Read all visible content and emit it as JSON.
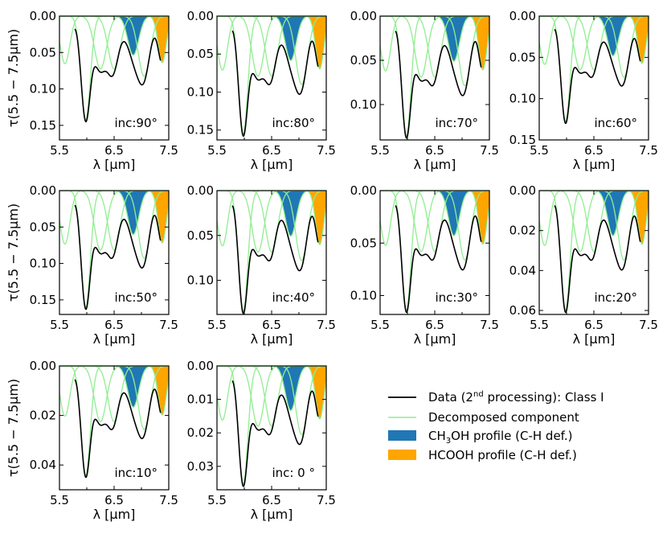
{
  "chart_data": {
    "type": "line",
    "x_unit": "λ [μm]",
    "xlim": [
      5.5,
      7.5
    ],
    "xticks": [
      "5.5",
      "6.5",
      "7.5"
    ],
    "ylabel": "τ(5.5 − 7.5μm)",
    "xlabel": "λ [μm]",
    "colors": {
      "data": "#000000",
      "component": "#90ee90",
      "ch3oh": "#1f77b4",
      "hcooh": "#ffa500"
    },
    "legend": {
      "data_label": "Data (2nd processing): Class I",
      "data_label_pre": "Data (2",
      "data_label_sup": "nd",
      "data_label_post": " processing): Class I",
      "component_label": "Decomposed component",
      "ch3oh_label": "CH3OH profile (C-H def.)",
      "ch3oh_pre": "CH",
      "ch3oh_sub": "3",
      "ch3oh_post": "OH profile (C-H def.)",
      "hcooh_label": "HCOOH profile (C-H def.)"
    },
    "panels": [
      {
        "label": "inc:90°",
        "scale": 0.145,
        "ymax": 0.17,
        "yticks": [
          "0.00",
          "0.05",
          "0.10",
          "0.15"
        ],
        "ytick_values": [
          0,
          0.05,
          0.1,
          0.15
        ],
        "show_ylabel": true
      },
      {
        "label": "inc:80°",
        "scale": 0.158,
        "ymax": 0.163,
        "yticks": [
          "0.00",
          "0.05",
          "0.10",
          "0.15"
        ],
        "ytick_values": [
          0,
          0.05,
          0.1,
          0.15
        ],
        "show_ylabel": false
      },
      {
        "label": "inc:70°",
        "scale": 0.138,
        "ymax": 0.14,
        "yticks": [
          "0.00",
          "0.05",
          "0.10"
        ],
        "ytick_values": [
          0,
          0.05,
          0.1
        ],
        "show_ylabel": false
      },
      {
        "label": "inc:60°",
        "scale": 0.13,
        "ymax": 0.15,
        "yticks": [
          "0.00",
          "0.05",
          "0.10",
          "0.15"
        ],
        "ytick_values": [
          0,
          0.05,
          0.1,
          0.15
        ],
        "show_ylabel": false
      },
      {
        "label": "inc:50°",
        "scale": 0.163,
        "ymax": 0.17,
        "yticks": [
          "0.00",
          "0.05",
          "0.10",
          "0.15"
        ],
        "ytick_values": [
          0,
          0.05,
          0.1,
          0.15
        ],
        "show_ylabel": true
      },
      {
        "label": "inc:40°",
        "scale": 0.137,
        "ymax": 0.138,
        "yticks": [
          "0.00",
          "0.05",
          "0.10"
        ],
        "ytick_values": [
          0,
          0.05,
          0.1
        ],
        "show_ylabel": false
      },
      {
        "label": "inc:30°",
        "scale": 0.116,
        "ymax": 0.118,
        "yticks": [
          "0.00",
          "0.05",
          "0.10"
        ],
        "ytick_values": [
          0,
          0.05,
          0.1
        ],
        "show_ylabel": false
      },
      {
        "label": "inc:20°",
        "scale": 0.061,
        "ymax": 0.062,
        "yticks": [
          "0.00",
          "0.02",
          "0.04",
          "0.06"
        ],
        "ytick_values": [
          0,
          0.02,
          0.04,
          0.06
        ],
        "show_ylabel": false
      },
      {
        "label": "inc:10°",
        "scale": 0.045,
        "ymax": 0.05,
        "yticks": [
          "0.00",
          "0.02",
          "0.04"
        ],
        "ytick_values": [
          0,
          0.02,
          0.04
        ],
        "show_ylabel": true
      },
      {
        "label": "inc: 0 °",
        "scale": 0.036,
        "ymax": 0.037,
        "yticks": [
          "0.00",
          "0.01",
          "0.02",
          "0.03"
        ],
        "ytick_values": [
          0,
          0.01,
          0.02,
          0.03
        ],
        "show_ylabel": false
      }
    ],
    "components": [
      {
        "name": "c1",
        "center": 5.6,
        "sigma": 0.09,
        "amp": 0.45
      },
      {
        "name": "c2",
        "center": 5.98,
        "sigma": 0.085,
        "amp": 0.98
      },
      {
        "name": "c3",
        "center": 6.25,
        "sigma": 0.11,
        "amp": 0.5
      },
      {
        "name": "c4",
        "center": 6.5,
        "sigma": 0.11,
        "amp": 0.5
      },
      {
        "name": "ch3oh",
        "center": 6.85,
        "sigma": 0.1,
        "amp": 0.37
      },
      {
        "name": "c6",
        "center": 7.05,
        "sigma": 0.11,
        "amp": 0.57
      },
      {
        "name": "hcooh",
        "center": 7.38,
        "sigma": 0.075,
        "amp": 0.44
      }
    ]
  }
}
